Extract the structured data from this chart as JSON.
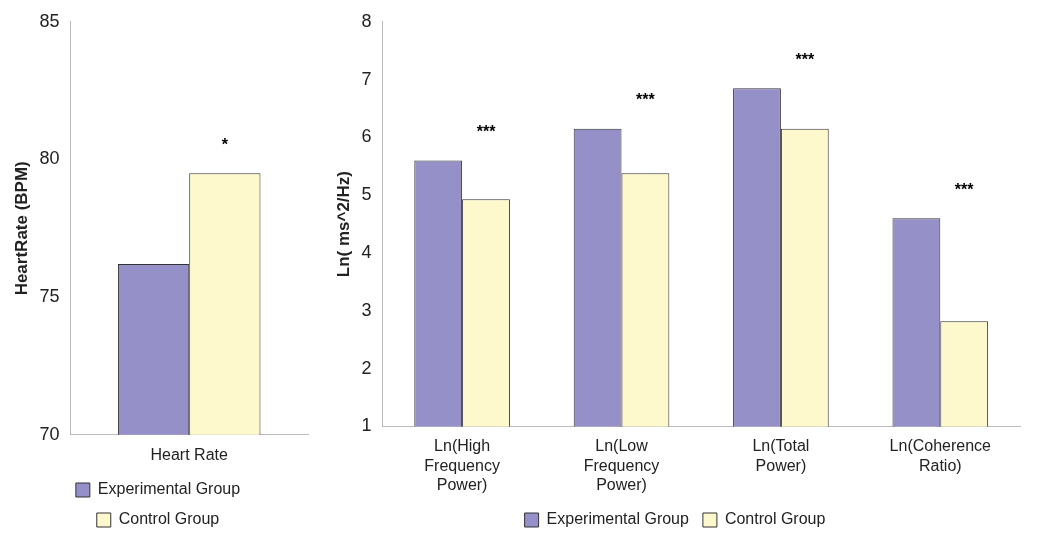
{
  "chart_data": [
    {
      "type": "bar",
      "ylabel": "HeartRate (BPM)",
      "categories": [
        "Heart Rate"
      ],
      "series": [
        {
          "name": "Experimental Group",
          "color": "#9591c8",
          "values": [
            76.2
          ]
        },
        {
          "name": "Control Group",
          "color": "#fdf9cc",
          "values": [
            79.5
          ]
        }
      ],
      "ylim": [
        70,
        85
      ],
      "yticks": [
        70,
        75,
        80,
        85
      ],
      "grid": false,
      "legend": "bottom",
      "annotations": [
        "*"
      ]
    },
    {
      "type": "bar",
      "ylabel": "Ln( ms^2/Hz)",
      "categories": [
        "Ln(High Frequency Power)",
        "Ln(Low Frequency Power)",
        "Ln(Total Power)",
        "Ln(Coherence Ratio)"
      ],
      "series": [
        {
          "name": "Experimental Group",
          "color": "#9591c8",
          "values": [
            5.6,
            6.15,
            6.85,
            4.6
          ]
        },
        {
          "name": "Control Group",
          "color": "#fdf9cc",
          "values": [
            4.93,
            5.38,
            6.15,
            2.82
          ]
        }
      ],
      "ylim": [
        1,
        8
      ],
      "yticks": [
        1,
        2,
        3,
        4,
        5,
        6,
        7,
        8
      ],
      "grid": false,
      "legend": "bottom",
      "annotations": [
        "***",
        "***",
        "***",
        "***"
      ]
    }
  ]
}
